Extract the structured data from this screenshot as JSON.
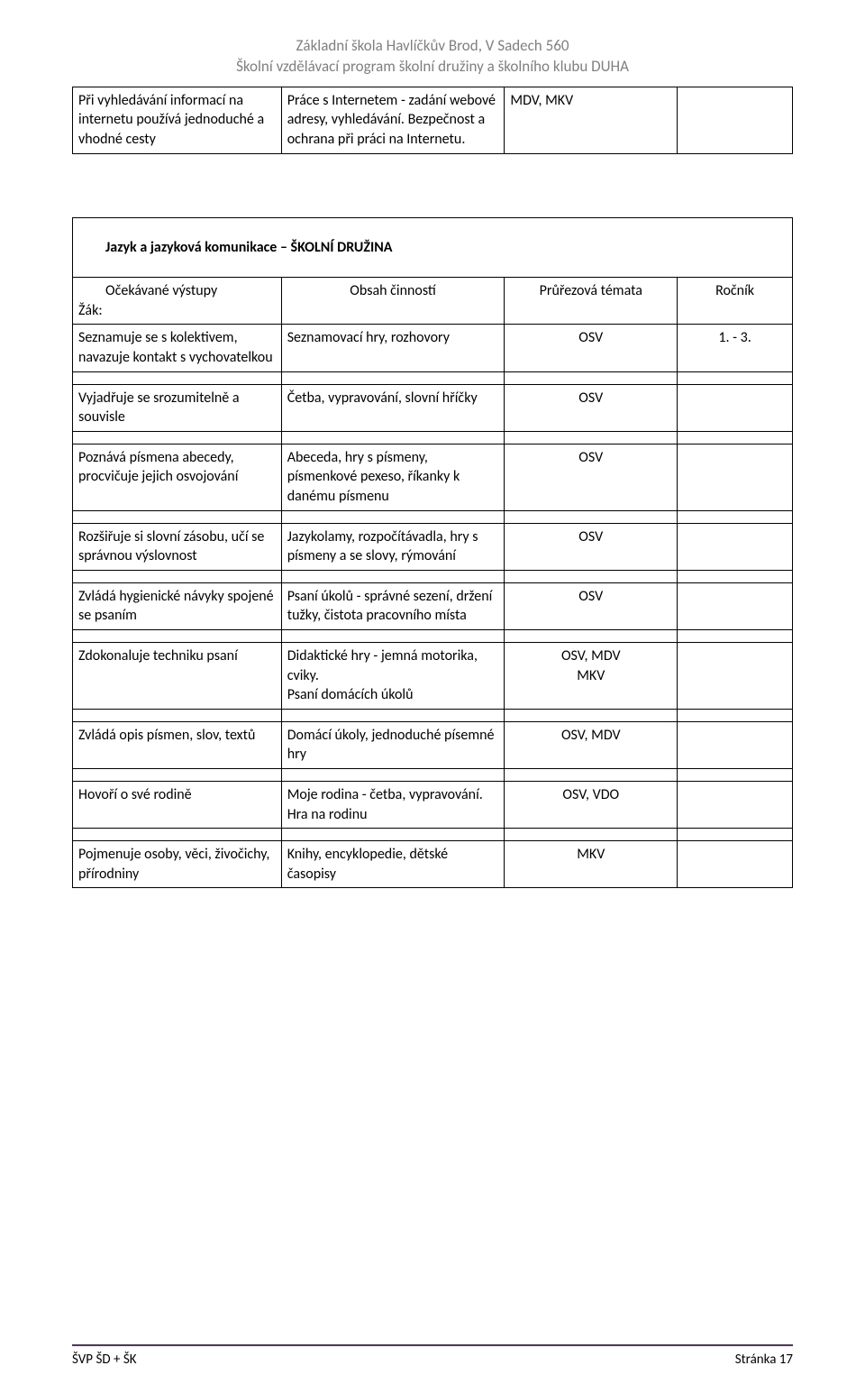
{
  "header": {
    "line1": "Základní škola Havlíčkův Brod, V Sadech 560",
    "line2": "Školní vzdělávací program školní družiny a školního klubu DUHA"
  },
  "table1": {
    "r1c1": "Při vyhledávání informací na internetu používá jednoduché a vhodné cesty",
    "r1c2": "Práce s Internetem - zadání webové adresy, vyhledávání. Bezpečnost a ochrana při práci na Internetu.",
    "r1c3": "MDV, MKV",
    "r1c4": ""
  },
  "section2_title": "Jazyk a jazyková komunikace – ŠKOLNÍ DRUŽINA",
  "table2": {
    "head": {
      "c1a": "Očekávané výstupy",
      "c1b": "Žák:",
      "c2": "Obsah činností",
      "c3": "Průřezová témata",
      "c4": "Ročník"
    },
    "rows": [
      {
        "c1": "Seznamuje se s kolektivem, navazuje kontakt s vychovatelkou",
        "c2": "Seznamovací hry, rozhovory",
        "c3": "OSV",
        "c4": "1. - 3."
      },
      {
        "c1": "Vyjadřuje se srozumitelně a souvisle",
        "c2": "Četba, vypravování, slovní hříčky",
        "c3": "OSV",
        "c4": ""
      },
      {
        "c1": "Poznává písmena abecedy, procvičuje jejich osvojování",
        "c2": "Abeceda, hry s písmeny, písmenkové pexeso, říkanky k danému písmenu",
        "c3": "OSV",
        "c4": ""
      },
      {
        "c1": "Rozšiřuje si slovní zásobu, učí se správnou výslovnost",
        "c2": "Jazykolamy, rozpočítávadla, hry s písmeny a se slovy, rýmování",
        "c3": "OSV",
        "c4": ""
      },
      {
        "c1": "Zvládá hygienické návyky spojené se psaním",
        "c2": "Psaní úkolů - správné sezení, držení tužky, čistota pracovního místa",
        "c3": "OSV",
        "c4": ""
      },
      {
        "c1": "Zdokonaluje techniku psaní",
        "c2": "Didaktické hry - jemná motorika, cviky.\nPsaní domácích úkolů",
        "c3": "OSV, MDV\nMKV",
        "c4": ""
      },
      {
        "c1": "Zvládá opis písmen, slov, textů",
        "c2": "Domácí úkoly, jednoduché písemné hry",
        "c3": "OSV, MDV",
        "c4": ""
      },
      {
        "c1": "Hovoří o své rodině",
        "c2": "Moje rodina - četba, vypravování.\nHra na rodinu",
        "c3": "OSV, VDO",
        "c4": ""
      },
      {
        "c1": "Pojmenuje osoby, věci, živočichy, přírodniny",
        "c2": "Knihy, encyklopedie, dětské časopisy",
        "c3": "MKV",
        "c4": ""
      }
    ]
  },
  "footer": {
    "left": "ŠVP ŠD + ŠK",
    "right": "Stránka 17"
  },
  "colors": {
    "header_gray": "#808080",
    "footer_rule": "#4f2d7f"
  }
}
